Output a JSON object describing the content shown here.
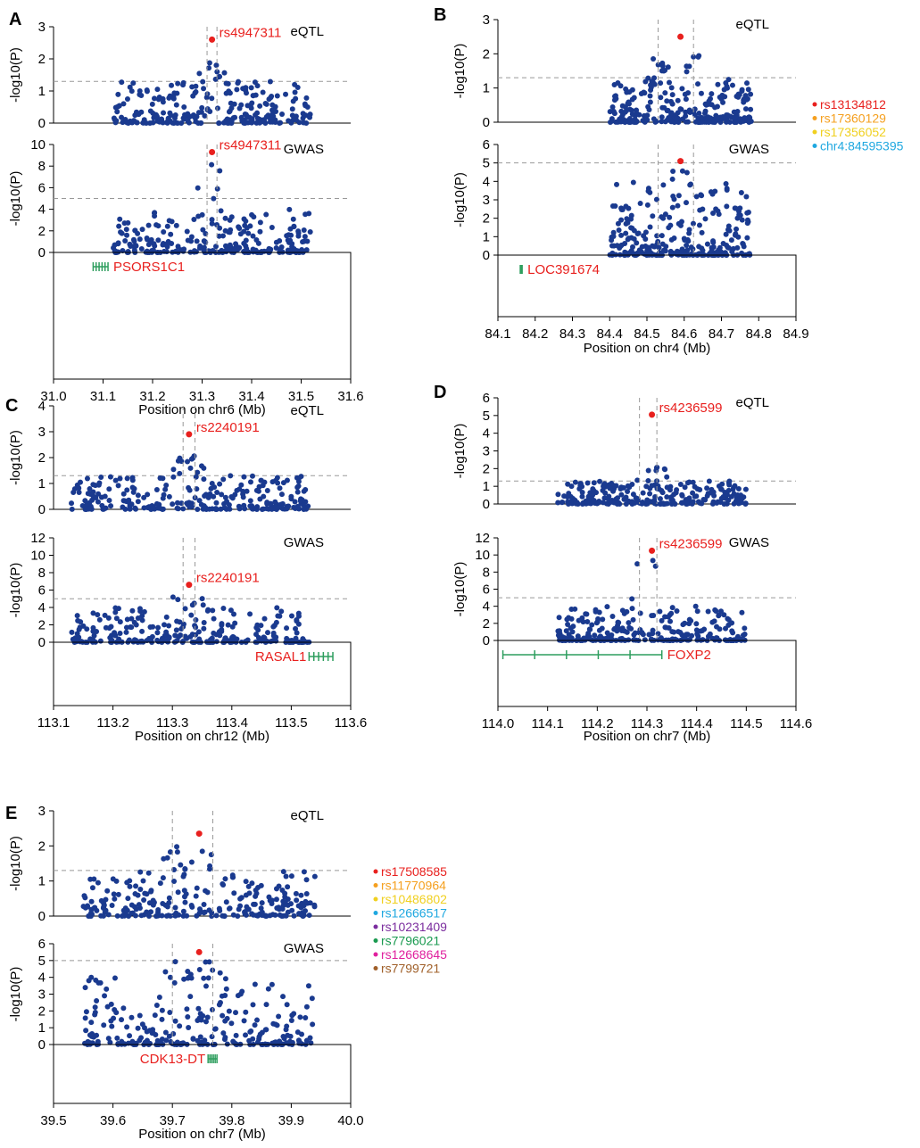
{
  "figure_description_labels": {
    "ylabel": "-log10(P)",
    "eqtl_label": "eQTL",
    "gwas_label": "GWAS"
  },
  "colors": {
    "points": "#1a3a8f",
    "highlight": "#e8201e",
    "gene": "#2e9e5e",
    "gene_label": "#e8201e",
    "threshold": "#999999"
  },
  "chart_data": [
    {
      "type": "scatter",
      "panel": "A",
      "xlabel": "Position on chr6 (Mb)",
      "xlim": [
        31.0,
        31.6
      ],
      "xticks": [
        "31.0",
        "31.1",
        "31.2",
        "31.3",
        "31.4",
        "31.5",
        "31.6"
      ],
      "eqtl": {
        "title": "eQTL",
        "ylim": [
          0,
          3
        ],
        "yticks": [
          "0",
          "1",
          "2",
          "3"
        ],
        "threshold": 1.3,
        "lead": {
          "label": "rs4947311",
          "x": 31.32,
          "y": 2.6
        },
        "range": [
          31.12,
          31.52
        ]
      },
      "gwas": {
        "title": "GWAS",
        "ylim": [
          0,
          10
        ],
        "yticks": [
          "0",
          "2",
          "4",
          "6",
          "8",
          "10"
        ],
        "threshold": 5,
        "lead": {
          "label": "rs4947311",
          "x": 31.32,
          "y": 9.3
        },
        "range": [
          31.12,
          31.52
        ]
      },
      "region": [
        31.31,
        31.33
      ],
      "gene": {
        "name": "PSORS1C1",
        "start": 31.08,
        "end": 31.11
      }
    },
    {
      "type": "scatter",
      "panel": "B",
      "xlabel": "Position on chr4 (Mb)",
      "xlim": [
        84.1,
        84.9
      ],
      "xticks": [
        "84.1",
        "84.2",
        "84.3",
        "84.4",
        "84.5",
        "84.6",
        "84.7",
        "84.8",
        "84.9"
      ],
      "eqtl": {
        "title": "eQTL",
        "ylim": [
          0,
          3
        ],
        "yticks": [
          "0",
          "1",
          "2",
          "3"
        ],
        "threshold": 1.3,
        "lead": {
          "label": "",
          "x": 84.59,
          "y": 2.5
        },
        "range": [
          84.4,
          84.78
        ]
      },
      "gwas": {
        "title": "GWAS",
        "ylim": [
          0,
          6
        ],
        "yticks": [
          "0",
          "1",
          "2",
          "3",
          "4",
          "5",
          "6"
        ],
        "threshold": 5,
        "lead": {
          "label": "",
          "x": 84.59,
          "y": 5.1
        },
        "range": [
          84.4,
          84.78
        ]
      },
      "region": [
        84.53,
        84.625
      ],
      "gene": {
        "name": "LOC391674",
        "start": 84.16,
        "end": 84.165
      },
      "legend": [
        {
          "label": "rs13134812",
          "color": "#e8201e"
        },
        {
          "label": "rs17360129",
          "color": "#f5a020"
        },
        {
          "label": "rs17356052",
          "color": "#f0d020"
        },
        {
          "label": "chr4:84595395",
          "color": "#20a8e0"
        }
      ]
    },
    {
      "type": "scatter",
      "panel": "C",
      "xlabel": "Position on chr12 (Mb)",
      "xlim": [
        113.1,
        113.6
      ],
      "xticks": [
        "113.1",
        "113.2",
        "113.3",
        "113.4",
        "113.5",
        "113.6"
      ],
      "eqtl": {
        "title": "eQTL",
        "ylim": [
          0,
          4
        ],
        "yticks": [
          "0",
          "1",
          "2",
          "3",
          "4"
        ],
        "threshold": 1.3,
        "lead": {
          "label": "rs2240191",
          "x": 113.328,
          "y": 2.9
        },
        "range": [
          113.13,
          113.53
        ]
      },
      "gwas": {
        "title": "GWAS",
        "ylim": [
          0,
          12
        ],
        "yticks": [
          "0",
          "2",
          "4",
          "6",
          "8",
          "10",
          "12"
        ],
        "threshold": 5,
        "lead": {
          "label": "rs2240191",
          "x": 113.328,
          "y": 6.6
        },
        "range": [
          113.13,
          113.53
        ]
      },
      "region": [
        113.318,
        113.338
      ],
      "gene": {
        "name": "RASAL1",
        "start": 113.53,
        "end": 113.57
      }
    },
    {
      "type": "scatter",
      "panel": "D",
      "xlabel": "Position on chr7 (Mb)",
      "xlim": [
        114.0,
        114.6
      ],
      "xticks": [
        "114.0",
        "114.1",
        "114.2",
        "114.3",
        "114.4",
        "114.5",
        "114.6"
      ],
      "eqtl": {
        "title": "eQTL",
        "ylim": [
          0,
          6
        ],
        "yticks": [
          "0",
          "1",
          "2",
          "3",
          "4",
          "5",
          "6"
        ],
        "threshold": 1.3,
        "lead": {
          "label": "rs4236599",
          "x": 114.31,
          "y": 5.05
        },
        "range": [
          114.12,
          114.5
        ]
      },
      "gwas": {
        "title": "GWAS",
        "ylim": [
          0,
          12
        ],
        "yticks": [
          "0",
          "2",
          "4",
          "6",
          "8",
          "10",
          "12"
        ],
        "threshold": 5,
        "lead": {
          "label": "rs4236599",
          "x": 114.31,
          "y": 10.5
        },
        "range": [
          114.12,
          114.5
        ]
      },
      "region": [
        114.285,
        114.32
      ],
      "gene": {
        "name": "FOXP2",
        "start": 114.01,
        "end": 114.33
      }
    },
    {
      "type": "scatter",
      "panel": "E",
      "xlabel": "Position on chr7 (Mb)",
      "xlim": [
        39.5,
        40.0
      ],
      "xticks": [
        "39.5",
        "39.6",
        "39.7",
        "39.8",
        "39.9",
        "40.0"
      ],
      "eqtl": {
        "title": "eQTL",
        "ylim": [
          0,
          3
        ],
        "yticks": [
          "0",
          "1",
          "2",
          "3"
        ],
        "threshold": 1.3,
        "lead": {
          "label": "",
          "x": 39.745,
          "y": 2.35
        },
        "range": [
          39.55,
          39.94
        ]
      },
      "gwas": {
        "title": "GWAS",
        "ylim": [
          0,
          6
        ],
        "yticks": [
          "0",
          "1",
          "2",
          "3",
          "4",
          "5",
          "6"
        ],
        "threshold": 5,
        "lead": {
          "label": "",
          "x": 39.745,
          "y": 5.5
        },
        "range": [
          39.55,
          39.94
        ]
      },
      "region": [
        39.7,
        39.768
      ],
      "gene": {
        "name": "CDK13-DT",
        "start": 39.76,
        "end": 39.775
      },
      "legend": [
        {
          "label": "rs17508585",
          "color": "#e8201e"
        },
        {
          "label": "rs11770964",
          "color": "#f5a020"
        },
        {
          "label": "rs10486802",
          "color": "#f0d020"
        },
        {
          "label": "rs12666517",
          "color": "#20a8e0"
        },
        {
          "label": "rs10231409",
          "color": "#7b2d9e"
        },
        {
          "label": "rs7796021",
          "color": "#1a9a50"
        },
        {
          "label": "rs12668645",
          "color": "#e0209e"
        },
        {
          "label": "rs7799721",
          "color": "#a0602a"
        }
      ]
    }
  ]
}
